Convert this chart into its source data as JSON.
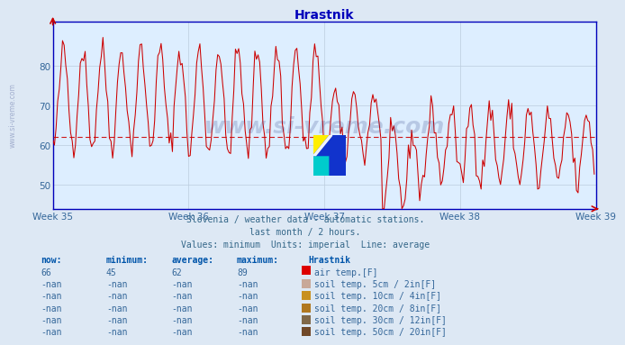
{
  "title": "Hrastnik",
  "background_color": "#dde8f4",
  "plot_bg_color": "#ddeeff",
  "grid_color": "#bbccdd",
  "title_color": "#0000bb",
  "tick_color": "#336699",
  "line_color": "#cc0000",
  "avg_line_value": 62,
  "ylim_min": 44,
  "ylim_max": 91,
  "yticks": [
    50,
    60,
    70,
    80
  ],
  "x_labels": [
    "Week 35",
    "Week 36",
    "Week 37",
    "Week 38",
    "Week 39"
  ],
  "subtitle1": "Slovenia / weather data - automatic stations.",
  "subtitle2": "last month / 2 hours.",
  "subtitle3": "Values: minimum  Units: imperial  Line: average",
  "watermark": "www.si-vreme.com",
  "sidebar_text": "www.si-vreme.com",
  "table_headers": [
    "now:",
    "minimum:",
    "average:",
    "maximum:",
    "Hrastnik"
  ],
  "table_row1_vals": [
    "66",
    "45",
    "62",
    "89"
  ],
  "table_label1": "air temp.[F]",
  "table_color1": "#dd0000",
  "table_nan_rows": [
    [
      "soil temp. 5cm / 2in[F]",
      "#c8a898"
    ],
    [
      "soil temp. 10cm / 4in[F]",
      "#c89020"
    ],
    [
      "soil temp. 20cm / 8in[F]",
      "#b07820"
    ],
    [
      "soil temp. 30cm / 12in[F]",
      "#806848"
    ],
    [
      "soil temp. 50cm / 20in[F]",
      "#704828"
    ]
  ],
  "n_points": 336,
  "seed": 42
}
